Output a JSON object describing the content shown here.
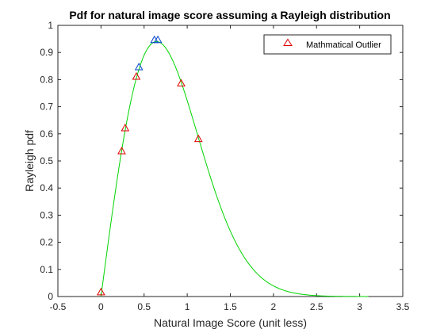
{
  "chart_data": {
    "type": "line",
    "title": "Pdf for natural image score assuming a Rayleigh distribution",
    "xlabel": "Natural Image Score (unit less)",
    "ylabel": "Rayleigh pdf",
    "xlim": [
      -0.5,
      3.5
    ],
    "ylim": [
      0,
      1
    ],
    "xticks": [
      -0.5,
      0,
      0.5,
      1,
      1.5,
      2,
      2.5,
      3,
      3.5
    ],
    "xtick_labels": [
      "-0.5",
      "0",
      "0.5",
      "1",
      "1.5",
      "2",
      "2.5",
      "3",
      "3.5"
    ],
    "yticks": [
      0,
      0.1,
      0.2,
      0.3,
      0.4,
      0.5,
      0.6,
      0.7,
      0.8,
      0.9,
      1
    ],
    "ytick_labels": [
      "0",
      "0.1",
      "0.2",
      "0.3",
      "0.4",
      "0.5",
      "0.6",
      "0.7",
      "0.8",
      "0.9",
      "1"
    ],
    "grid": false,
    "legend": {
      "placement": "top-right",
      "entries": [
        "Mathmatical Outlier"
      ]
    },
    "colors": {
      "curve": "#00d400",
      "outlier_marker": "#e00000",
      "normal_marker": "#0044cc"
    },
    "curve": {
      "distribution": "rayleigh",
      "sigma": 0.645,
      "x_range": [
        0,
        3.1
      ]
    },
    "series": [
      {
        "name": "Mathmatical Outlier",
        "marker": "triangle",
        "x": [
          0.0,
          0.24,
          0.28,
          0.41,
          0.93,
          1.13
        ],
        "y": [
          0.015,
          0.535,
          0.62,
          0.81,
          0.785,
          0.58
        ]
      },
      {
        "marker": "triangle",
        "x": [
          0.44,
          0.62,
          0.66
        ],
        "y": [
          0.845,
          0.945,
          0.945
        ]
      }
    ]
  }
}
